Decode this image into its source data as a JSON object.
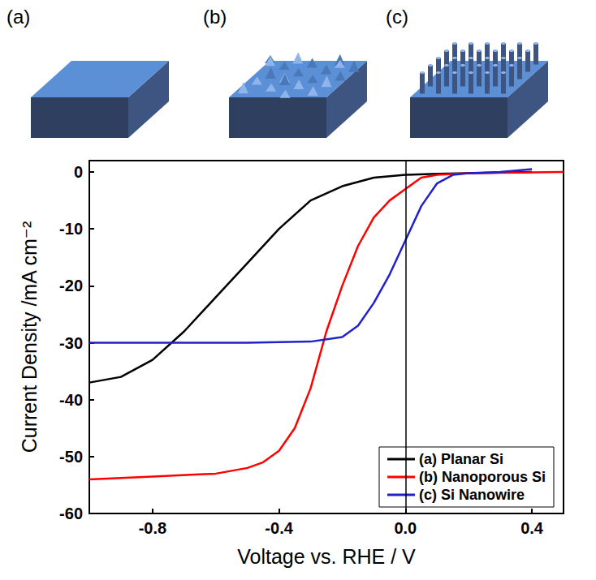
{
  "chart_data": {
    "type": "line",
    "x_label": "Voltage vs. RHE / V",
    "y_label": "Current Density /mA cm⁻²",
    "annotations": [
      "(a)",
      "(b)",
      "(c)"
    ],
    "xlim": [
      -1.0,
      0.5
    ],
    "xticks": [
      -0.8,
      -0.4,
      {
        "value": 0,
        "label": "0.0"
      },
      0.4
    ],
    "ylim": [
      -60,
      2
    ],
    "yticks": [
      -60,
      -50,
      -40,
      -30,
      -20,
      -10,
      0
    ],
    "vline": 0,
    "grid": false,
    "legend": "lower right",
    "series": [
      {
        "name": "(a) Planar Si",
        "color": "#000000",
        "x": [
          -1.0,
          -0.9,
          -0.8,
          -0.7,
          -0.6,
          -0.5,
          -0.4,
          -0.3,
          -0.2,
          -0.1,
          0.0,
          0.1,
          0.2,
          0.4
        ],
        "values": [
          -37,
          -36,
          -33,
          -28,
          -22,
          -16,
          -10,
          -5,
          -2.5,
          -1,
          -0.5,
          -0.3,
          -0.2,
          0
        ]
      },
      {
        "name": "(b) Nanoporous Si",
        "color": "#ff0000",
        "x": [
          -1.0,
          -0.8,
          -0.6,
          -0.5,
          -0.45,
          -0.4,
          -0.35,
          -0.3,
          -0.25,
          -0.2,
          -0.15,
          -0.1,
          -0.05,
          0.0,
          0.05,
          0.1,
          0.2,
          0.5
        ],
        "values": [
          -54,
          -53.5,
          -53,
          -52,
          -51,
          -49,
          -45,
          -38,
          -28,
          -20,
          -13,
          -8,
          -5,
          -3,
          -1,
          -0.5,
          -0.2,
          0
        ]
      },
      {
        "name": "(c) Si Nanowire",
        "color": "#2020cc",
        "x": [
          -1.0,
          -0.5,
          -0.3,
          -0.2,
          -0.15,
          -0.1,
          -0.05,
          0.0,
          0.05,
          0.1,
          0.15,
          0.2,
          0.3,
          0.4
        ],
        "values": [
          -30,
          -30,
          -29.8,
          -29,
          -27,
          -23,
          -18,
          -12,
          -6,
          -2,
          -0.5,
          -0.2,
          0,
          0.5
        ]
      }
    ]
  }
}
